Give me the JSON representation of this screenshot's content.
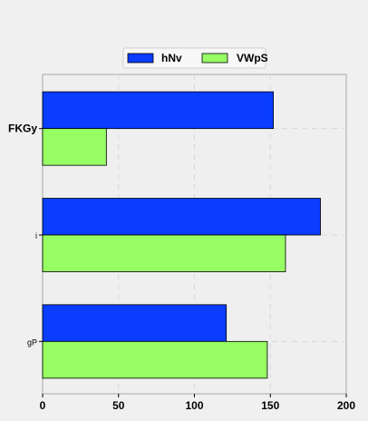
{
  "chart_data": {
    "type": "bar",
    "orientation": "horizontal",
    "categories": [
      "FKGy",
      "i",
      "gP"
    ],
    "series": [
      {
        "name": "hNv",
        "color": "#0a3dff",
        "values": [
          152,
          183,
          121
        ]
      },
      {
        "name": "VWpS",
        "color": "#97ff64",
        "values": [
          42,
          160,
          148
        ]
      }
    ],
    "xlim": [
      0,
      200
    ],
    "xticks": [
      0,
      50,
      100,
      150,
      200
    ],
    "title": "",
    "xlabel": "",
    "ylabel": "",
    "grid": true,
    "legend_position": "top-center"
  }
}
